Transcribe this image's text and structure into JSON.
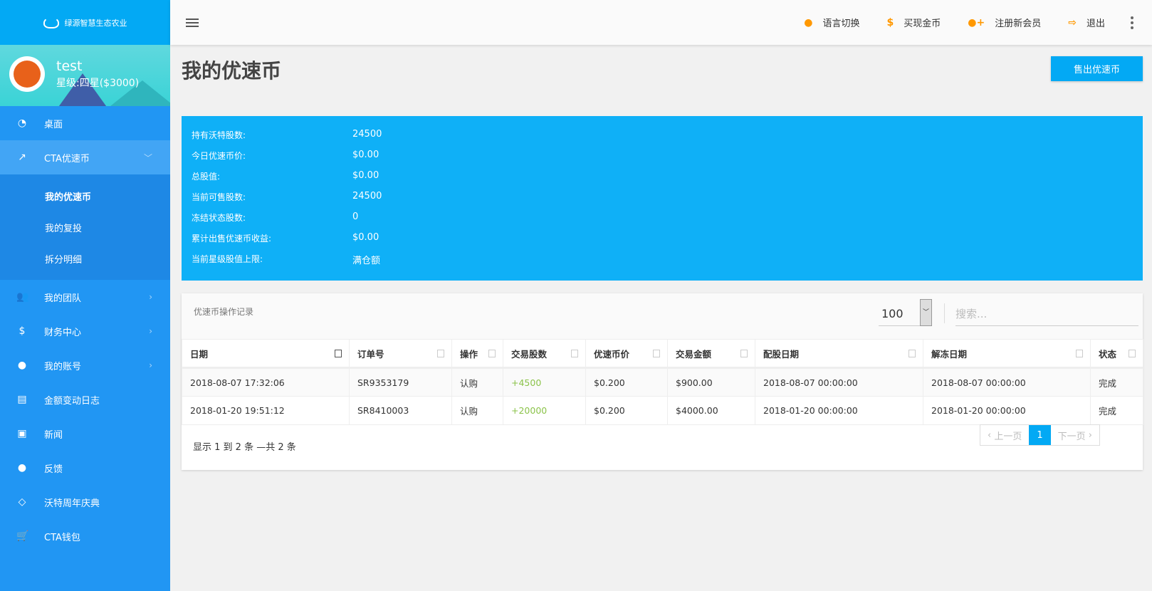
{
  "brand": {
    "name": "绿源智慧生态农业"
  },
  "user": {
    "name": "test",
    "level": "星级:四星($3000)"
  },
  "sidebar": {
    "items": [
      {
        "label": "桌面",
        "icon": "dashboard-icon"
      },
      {
        "label": "CTA优速币",
        "icon": "chart-line-icon",
        "expanded": true
      },
      {
        "label": "我的团队",
        "icon": "users-icon"
      },
      {
        "label": "财务中心",
        "icon": "dollar-icon"
      },
      {
        "label": "我的账号",
        "icon": "user-icon"
      },
      {
        "label": "金额变动日志",
        "icon": "file-icon"
      },
      {
        "label": "新闻",
        "icon": "newspaper-icon"
      },
      {
        "label": "反馈",
        "icon": "comment-icon"
      },
      {
        "label": "沃特周年庆典",
        "icon": "diamond-icon"
      },
      {
        "label": "CTA钱包",
        "icon": "cart-icon"
      }
    ],
    "submenu": [
      {
        "label": "我的优速币",
        "current": true
      },
      {
        "label": "我的复投"
      },
      {
        "label": "拆分明细"
      }
    ]
  },
  "topbar": {
    "actions": [
      {
        "label": "语言切换",
        "icon": "globe-icon"
      },
      {
        "label": "买现金币",
        "icon": "dollar-icon"
      },
      {
        "label": "注册新会员",
        "icon": "user-plus-icon"
      },
      {
        "label": "退出",
        "icon": "sign-out-icon"
      }
    ]
  },
  "page": {
    "title": "我的优速币",
    "sell_button": "售出优速币"
  },
  "info": [
    {
      "k": "持有沃特股数:",
      "v": "24500"
    },
    {
      "k": "今日优速币价:",
      "v": "$0.00"
    },
    {
      "k": "总股值:",
      "v": "$0.00"
    },
    {
      "k": "当前可售股数:",
      "v": "24500"
    },
    {
      "k": "冻结状态股数:",
      "v": "0"
    },
    {
      "k": "累计出售优速币收益:",
      "v": "$0.00"
    },
    {
      "k": "当前星级股值上限:",
      "v": "满仓额"
    }
  ],
  "records": {
    "title": "优速币操作记录",
    "page_size": "100",
    "search_placeholder": "搜索...",
    "columns": [
      "日期",
      "订单号",
      "操作",
      "交易股数",
      "优速币价",
      "交易金额",
      "配股日期",
      "解冻日期",
      "状态"
    ],
    "rows": [
      [
        "2018-08-07 17:32:06",
        "SR9353179",
        "认购",
        "+4500",
        "$0.200",
        "$900.00",
        "2018-08-07 00:00:00",
        "2018-08-07 00:00:00",
        "完成"
      ],
      [
        "2018-01-20 19:51:12",
        "SR8410003",
        "认购",
        "+20000",
        "$0.200",
        "$4000.00",
        "2018-01-20 00:00:00",
        "2018-01-20 00:00:00",
        "完成"
      ]
    ],
    "summary": "显示 1 到 2 条 —共 2 条",
    "pager": {
      "prev": "上一页",
      "current": "1",
      "next": "下一页"
    }
  },
  "colors": {
    "sidebar": "#2196f3",
    "accent": "#03a9f4",
    "info_panel": "#0fb0f7",
    "icon_orange": "#ff9800",
    "positive": "#8bc34a"
  }
}
